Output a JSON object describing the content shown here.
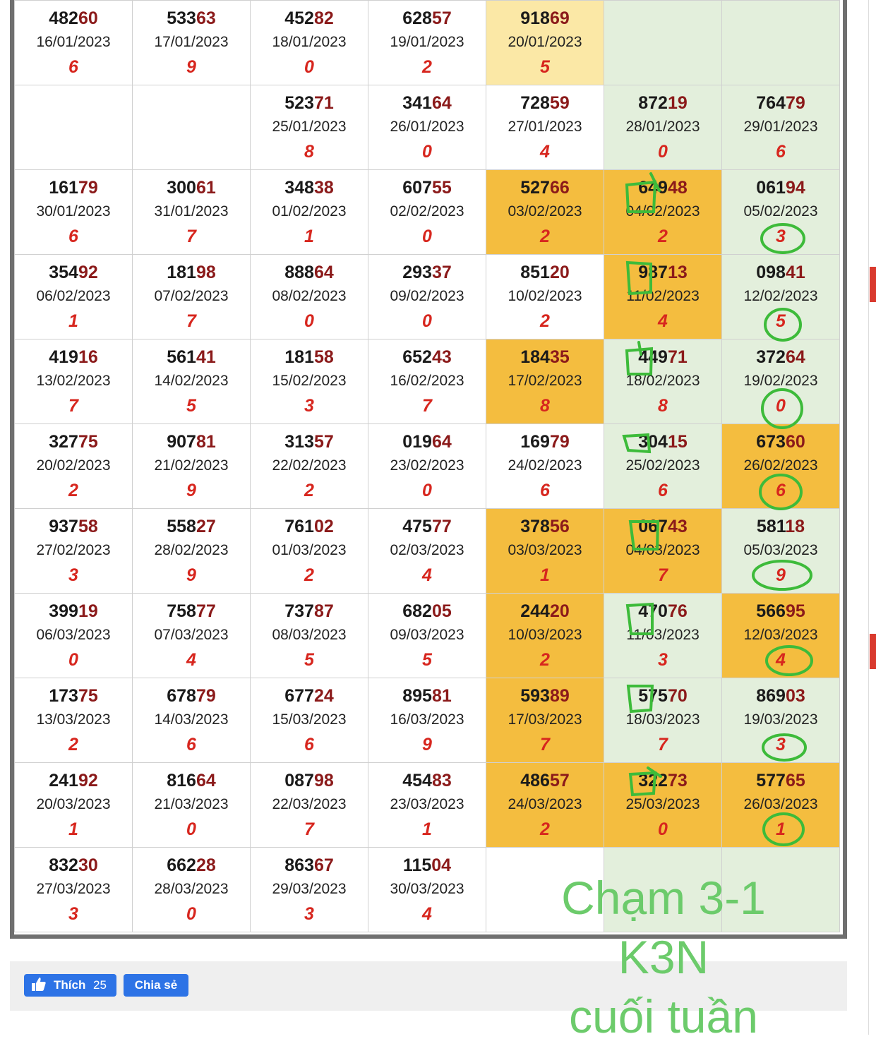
{
  "table": {
    "rows": [
      [
        {
          "hi_prefix": "482",
          "hi": "60",
          "date": "16/01/2023",
          "digit": "6",
          "color": "white"
        },
        {
          "hi_prefix": "533",
          "hi": "63",
          "date": "17/01/2023",
          "digit": "9",
          "color": "white"
        },
        {
          "hi_prefix": "452",
          "hi": "82",
          "date": "18/01/2023",
          "digit": "0",
          "color": "white"
        },
        {
          "hi_prefix": "628",
          "hi": "57",
          "date": "19/01/2023",
          "digit": "2",
          "color": "white"
        },
        {
          "hi_prefix": "918",
          "hi": "69",
          "date": "20/01/2023",
          "digit": "5",
          "color": "yellow"
        },
        {
          "hi_prefix": "",
          "hi": "",
          "date": "",
          "digit": "",
          "color": "green"
        },
        {
          "hi_prefix": "",
          "hi": "",
          "date": "",
          "digit": "",
          "color": "green"
        }
      ],
      [
        {
          "hi_prefix": "",
          "hi": "",
          "date": "",
          "digit": "",
          "color": "white"
        },
        {
          "hi_prefix": "",
          "hi": "",
          "date": "",
          "digit": "",
          "color": "white"
        },
        {
          "hi_prefix": "523",
          "hi": "71",
          "date": "25/01/2023",
          "digit": "8",
          "color": "white"
        },
        {
          "hi_prefix": "341",
          "hi": "64",
          "date": "26/01/2023",
          "digit": "0",
          "color": "white"
        },
        {
          "hi_prefix": "728",
          "hi": "59",
          "date": "27/01/2023",
          "digit": "4",
          "color": "white"
        },
        {
          "hi_prefix": "872",
          "hi": "19",
          "date": "28/01/2023",
          "digit": "0",
          "color": "green"
        },
        {
          "hi_prefix": "764",
          "hi": "79",
          "date": "29/01/2023",
          "digit": "6",
          "color": "green"
        }
      ],
      [
        {
          "hi_prefix": "161",
          "hi": "79",
          "date": "30/01/2023",
          "digit": "6",
          "color": "white"
        },
        {
          "hi_prefix": "300",
          "hi": "61",
          "date": "31/01/2023",
          "digit": "7",
          "color": "white"
        },
        {
          "hi_prefix": "348",
          "hi": "38",
          "date": "01/02/2023",
          "digit": "1",
          "color": "white"
        },
        {
          "hi_prefix": "607",
          "hi": "55",
          "date": "02/02/2023",
          "digit": "0",
          "color": "white"
        },
        {
          "hi_prefix": "527",
          "hi": "66",
          "date": "03/02/2023",
          "digit": "2",
          "color": "orange"
        },
        {
          "hi_prefix": "649",
          "hi": "48",
          "date": "04/02/2023",
          "digit": "2",
          "color": "orange"
        },
        {
          "hi_prefix": "061",
          "hi": "94",
          "date": "05/02/2023",
          "digit": "3",
          "color": "green"
        }
      ],
      [
        {
          "hi_prefix": "354",
          "hi": "92",
          "date": "06/02/2023",
          "digit": "1",
          "color": "white"
        },
        {
          "hi_prefix": "181",
          "hi": "98",
          "date": "07/02/2023",
          "digit": "7",
          "color": "white"
        },
        {
          "hi_prefix": "888",
          "hi": "64",
          "date": "08/02/2023",
          "digit": "0",
          "color": "white"
        },
        {
          "hi_prefix": "293",
          "hi": "37",
          "date": "09/02/2023",
          "digit": "0",
          "color": "white"
        },
        {
          "hi_prefix": "851",
          "hi": "20",
          "date": "10/02/2023",
          "digit": "2",
          "color": "white"
        },
        {
          "hi_prefix": "987",
          "hi": "13",
          "date": "11/02/2023",
          "digit": "4",
          "color": "orange"
        },
        {
          "hi_prefix": "098",
          "hi": "41",
          "date": "12/02/2023",
          "digit": "5",
          "color": "green"
        }
      ],
      [
        {
          "hi_prefix": "419",
          "hi": "16",
          "date": "13/02/2023",
          "digit": "7",
          "color": "white"
        },
        {
          "hi_prefix": "561",
          "hi": "41",
          "date": "14/02/2023",
          "digit": "5",
          "color": "white"
        },
        {
          "hi_prefix": "181",
          "hi": "58",
          "date": "15/02/2023",
          "digit": "3",
          "color": "white"
        },
        {
          "hi_prefix": "652",
          "hi": "43",
          "date": "16/02/2023",
          "digit": "7",
          "color": "white"
        },
        {
          "hi_prefix": "184",
          "hi": "35",
          "date": "17/02/2023",
          "digit": "8",
          "color": "orange"
        },
        {
          "hi_prefix": "449",
          "hi": "71",
          "date": "18/02/2023",
          "digit": "8",
          "color": "green"
        },
        {
          "hi_prefix": "372",
          "hi": "64",
          "date": "19/02/2023",
          "digit": "0",
          "color": "green"
        }
      ],
      [
        {
          "hi_prefix": "327",
          "hi": "75",
          "date": "20/02/2023",
          "digit": "2",
          "color": "white"
        },
        {
          "hi_prefix": "907",
          "hi": "81",
          "date": "21/02/2023",
          "digit": "9",
          "color": "white"
        },
        {
          "hi_prefix": "313",
          "hi": "57",
          "date": "22/02/2023",
          "digit": "2",
          "color": "white"
        },
        {
          "hi_prefix": "019",
          "hi": "64",
          "date": "23/02/2023",
          "digit": "0",
          "color": "white"
        },
        {
          "hi_prefix": "169",
          "hi": "79",
          "date": "24/02/2023",
          "digit": "6",
          "color": "white"
        },
        {
          "hi_prefix": "304",
          "hi": "15",
          "date": "25/02/2023",
          "digit": "6",
          "color": "green"
        },
        {
          "hi_prefix": "673",
          "hi": "60",
          "date": "26/02/2023",
          "digit": "6",
          "color": "orange"
        }
      ],
      [
        {
          "hi_prefix": "937",
          "hi": "58",
          "date": "27/02/2023",
          "digit": "3",
          "color": "white"
        },
        {
          "hi_prefix": "558",
          "hi": "27",
          "date": "28/02/2023",
          "digit": "9",
          "color": "white"
        },
        {
          "hi_prefix": "761",
          "hi": "02",
          "date": "01/03/2023",
          "digit": "2",
          "color": "white"
        },
        {
          "hi_prefix": "475",
          "hi": "77",
          "date": "02/03/2023",
          "digit": "4",
          "color": "white"
        },
        {
          "hi_prefix": "378",
          "hi": "56",
          "date": "03/03/2023",
          "digit": "1",
          "color": "orange"
        },
        {
          "hi_prefix": "067",
          "hi": "43",
          "date": "04/03/2023",
          "digit": "7",
          "color": "orange"
        },
        {
          "hi_prefix": "581",
          "hi": "18",
          "date": "05/03/2023",
          "digit": "9",
          "color": "green"
        }
      ],
      [
        {
          "hi_prefix": "399",
          "hi": "19",
          "date": "06/03/2023",
          "digit": "0",
          "color": "white"
        },
        {
          "hi_prefix": "758",
          "hi": "77",
          "date": "07/03/2023",
          "digit": "4",
          "color": "white"
        },
        {
          "hi_prefix": "737",
          "hi": "87",
          "date": "08/03/2023",
          "digit": "5",
          "color": "white"
        },
        {
          "hi_prefix": "682",
          "hi": "05",
          "date": "09/03/2023",
          "digit": "5",
          "color": "white"
        },
        {
          "hi_prefix": "244",
          "hi": "20",
          "date": "10/03/2023",
          "digit": "2",
          "color": "orange"
        },
        {
          "hi_prefix": "470",
          "hi": "76",
          "date": "11/03/2023",
          "digit": "3",
          "color": "green"
        },
        {
          "hi_prefix": "566",
          "hi": "95",
          "date": "12/03/2023",
          "digit": "4",
          "color": "orange"
        }
      ],
      [
        {
          "hi_prefix": "173",
          "hi": "75",
          "date": "13/03/2023",
          "digit": "2",
          "color": "white"
        },
        {
          "hi_prefix": "678",
          "hi": "79",
          "date": "14/03/2023",
          "digit": "6",
          "color": "white"
        },
        {
          "hi_prefix": "677",
          "hi": "24",
          "date": "15/03/2023",
          "digit": "6",
          "color": "white"
        },
        {
          "hi_prefix": "895",
          "hi": "81",
          "date": "16/03/2023",
          "digit": "9",
          "color": "white"
        },
        {
          "hi_prefix": "593",
          "hi": "89",
          "date": "17/03/2023",
          "digit": "7",
          "color": "orange"
        },
        {
          "hi_prefix": "575",
          "hi": "70",
          "date": "18/03/2023",
          "digit": "7",
          "color": "green"
        },
        {
          "hi_prefix": "869",
          "hi": "03",
          "date": "19/03/2023",
          "digit": "3",
          "color": "green"
        }
      ],
      [
        {
          "hi_prefix": "241",
          "hi": "92",
          "date": "20/03/2023",
          "digit": "1",
          "color": "white"
        },
        {
          "hi_prefix": "816",
          "hi": "64",
          "date": "21/03/2023",
          "digit": "0",
          "color": "white"
        },
        {
          "hi_prefix": "087",
          "hi": "98",
          "date": "22/03/2023",
          "digit": "7",
          "color": "white"
        },
        {
          "hi_prefix": "454",
          "hi": "83",
          "date": "23/03/2023",
          "digit": "1",
          "color": "white"
        },
        {
          "hi_prefix": "486",
          "hi": "57",
          "date": "24/03/2023",
          "digit": "2",
          "color": "orange"
        },
        {
          "hi_prefix": "322",
          "hi": "73",
          "date": "25/03/2023",
          "digit": "0",
          "color": "orange"
        },
        {
          "hi_prefix": "577",
          "hi": "65",
          "date": "26/03/2023",
          "digit": "1",
          "color": "orange"
        }
      ],
      [
        {
          "hi_prefix": "832",
          "hi": "30",
          "date": "27/03/2023",
          "digit": "3",
          "color": "white"
        },
        {
          "hi_prefix": "662",
          "hi": "28",
          "date": "28/03/2023",
          "digit": "0",
          "color": "white"
        },
        {
          "hi_prefix": "863",
          "hi": "67",
          "date": "29/03/2023",
          "digit": "3",
          "color": "white"
        },
        {
          "hi_prefix": "115",
          "hi": "04",
          "date": "30/03/2023",
          "digit": "4",
          "color": "white"
        },
        {
          "hi_prefix": "",
          "hi": "",
          "date": "",
          "digit": "",
          "color": "white"
        },
        {
          "hi_prefix": "",
          "hi": "",
          "date": "",
          "digit": "",
          "color": "green"
        },
        {
          "hi_prefix": "",
          "hi": "",
          "date": "",
          "digit": "",
          "color": "green"
        }
      ]
    ]
  },
  "social": {
    "like_label": "Thích",
    "like_count": "25",
    "share_label": "Chia sẻ"
  },
  "overlay": {
    "line1": "Chạm 3-1",
    "line2": "K3N",
    "line3": "cuối tuần"
  },
  "colors": {
    "white": "#ffffff",
    "green": "#e3efdc",
    "orange": "#f4bd3f",
    "yellow": "#fbe8a6",
    "annotation": "#3dbb3a"
  },
  "icons": [
    "thumbs-up-icon",
    "circle-annotation",
    "square-annotation"
  ]
}
